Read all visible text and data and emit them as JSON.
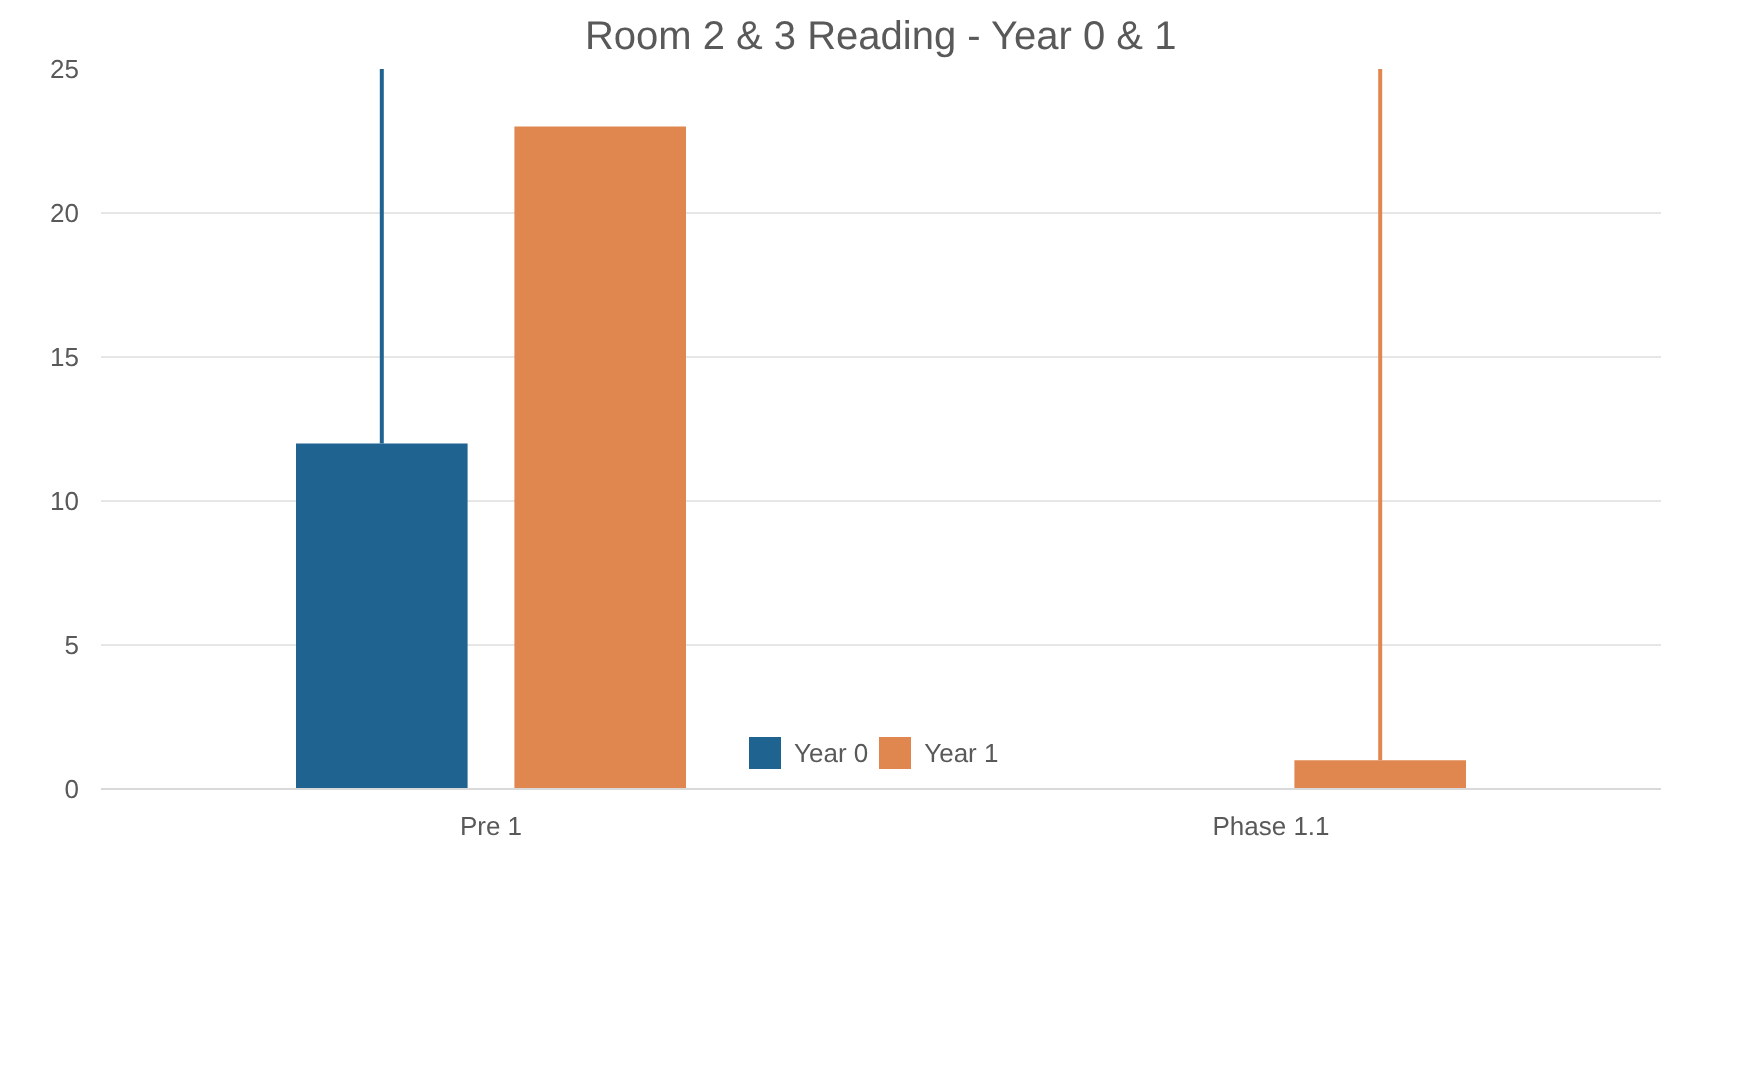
{
  "chart_data": {
    "type": "bar",
    "title": "Room 2 & 3 Reading - Year 0 & 1",
    "categories": [
      "Pre 1",
      "Phase 1.1"
    ],
    "series": [
      {
        "name": "Year 0",
        "color": "#1f6391",
        "values": [
          12,
          0
        ],
        "errors": [
          [
            12,
            25
          ],
          null
        ]
      },
      {
        "name": "Year 1",
        "color": "#e0874f",
        "values": [
          23,
          1
        ],
        "errors": [
          null,
          [
            1,
            25
          ]
        ]
      }
    ],
    "ylim": [
      0,
      25
    ],
    "yticks": [
      0,
      5,
      10,
      15,
      20,
      25
    ],
    "grid": "y",
    "legend": "bottom"
  }
}
